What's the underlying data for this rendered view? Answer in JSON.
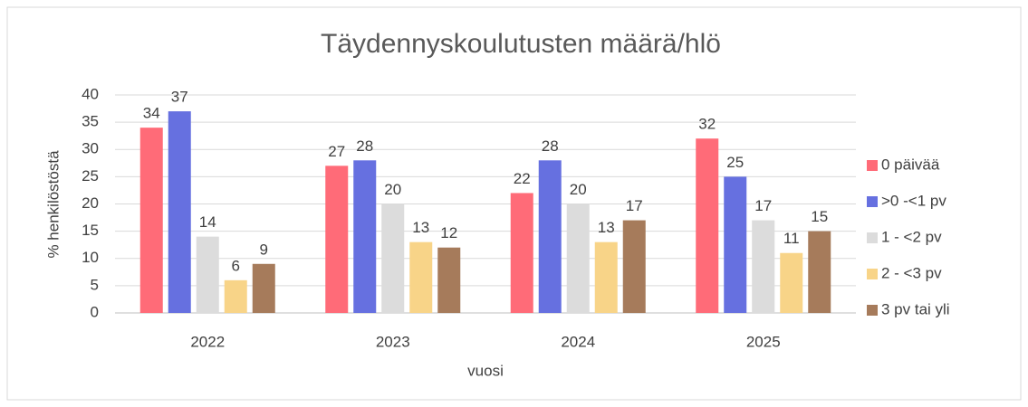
{
  "chart_data": {
    "type": "bar",
    "title": "Täydennyskoulutusten määrä/hlö",
    "xlabel": "vuosi",
    "ylabel": "% henkilöstöstä",
    "categories": [
      "2022",
      "2023",
      "2024",
      "2025"
    ],
    "series": [
      {
        "name": "0 päivää",
        "color": "#ff6b78",
        "values": [
          34,
          27,
          22,
          32
        ]
      },
      {
        "name": ">0 -<1 pv",
        "color": "#6670e0",
        "values": [
          37,
          28,
          28,
          25
        ]
      },
      {
        "name": "1 - <2 pv",
        "color": "#dcdcdc",
        "values": [
          14,
          20,
          20,
          17
        ]
      },
      {
        "name": "2 - <3 pv",
        "color": "#f8d488",
        "values": [
          6,
          13,
          13,
          11
        ]
      },
      {
        "name": "3 pv tai yli",
        "color": "#a67b5b",
        "values": [
          9,
          12,
          17,
          15
        ]
      }
    ],
    "ylim": [
      0,
      40
    ],
    "yticks": [
      0,
      5,
      10,
      15,
      20,
      25,
      30,
      35,
      40
    ],
    "grid": true,
    "legend": "right"
  }
}
